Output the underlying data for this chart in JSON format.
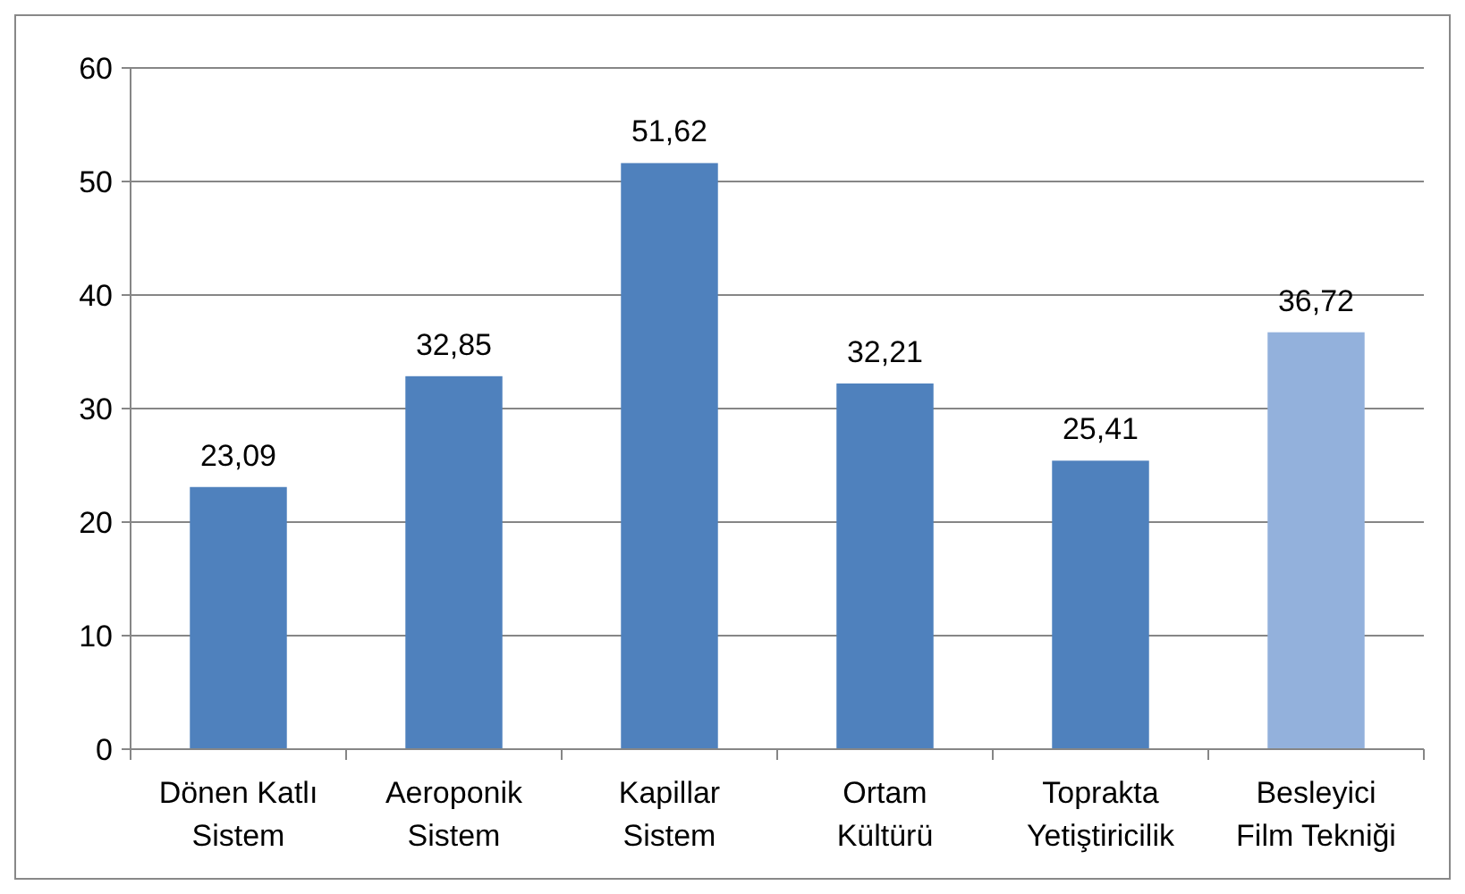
{
  "chart_data": {
    "type": "bar",
    "categories": [
      "Dönen Katlı Sistem",
      "Aeroponik Sistem",
      "Kapillar Sistem",
      "Ortam Kültürü",
      "Toprakta Yetiştiricilik",
      "Besleyici Film Tekniği"
    ],
    "values": [
      23.09,
      32.85,
      51.62,
      32.21,
      25.41,
      36.72
    ],
    "value_labels": [
      "23,09",
      "32,85",
      "51,62",
      "32,21",
      "25,41",
      "36,72"
    ],
    "colors": [
      "#4f81bd",
      "#4f81bd",
      "#4f81bd",
      "#4f81bd",
      "#4f81bd",
      "#93b1dc"
    ],
    "ylim": [
      0,
      60
    ],
    "yticks": [
      0,
      10,
      20,
      30,
      40,
      50,
      60
    ],
    "grid": "y"
  }
}
